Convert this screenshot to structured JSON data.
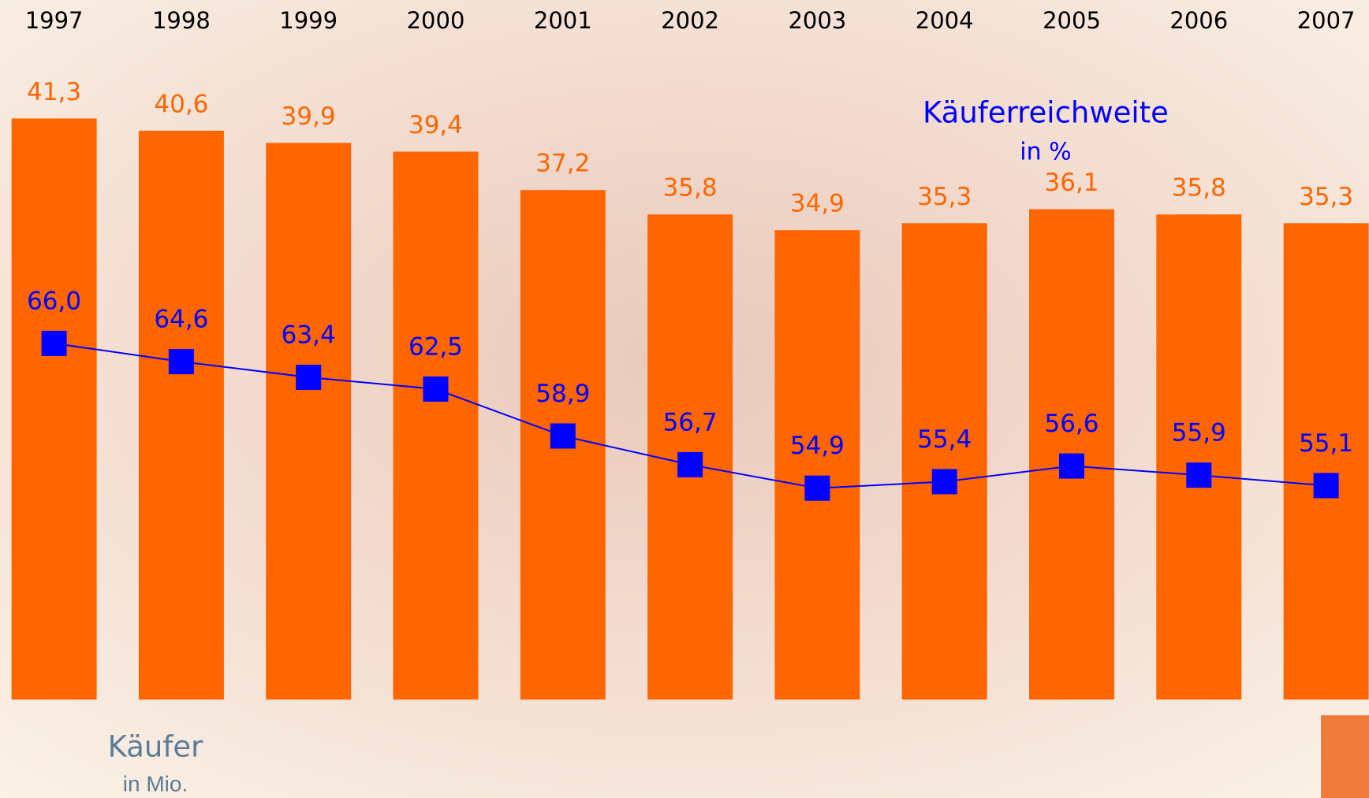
{
  "chart_data": {
    "type": "bar",
    "categories": [
      "1997",
      "1998",
      "1999",
      "2000",
      "2001",
      "2002",
      "2003",
      "2004",
      "2005",
      "2006",
      "2007"
    ],
    "series": [
      {
        "name": "Käufer",
        "unit": "in Mio.",
        "type": "bar",
        "color": "#ff6600",
        "values": [
          41.3,
          40.6,
          39.9,
          39.4,
          37.2,
          35.8,
          34.9,
          35.3,
          36.1,
          35.8,
          35.3
        ],
        "value_labels": [
          "41,3",
          "40,6",
          "39,9",
          "39,4",
          "37,2",
          "35,8",
          "34,9",
          "35,3",
          "36,1",
          "35,8",
          "35,3"
        ]
      },
      {
        "name": "Käuferreichweite",
        "unit": "in %",
        "type": "line",
        "axis": "y2",
        "color": "#0000ff",
        "values": [
          66.0,
          64.6,
          63.4,
          62.5,
          58.9,
          56.7,
          54.9,
          55.4,
          56.6,
          55.9,
          55.1
        ],
        "value_labels": [
          "66,0",
          "64,6",
          "63,4",
          "62,5",
          "58,9",
          "56,7",
          "54,9",
          "55,4",
          "56,6",
          "55,9",
          "55,1"
        ]
      }
    ],
    "ylim": [
      8,
      48
    ],
    "y2lim": [
      38.7,
      92.2
    ]
  }
}
